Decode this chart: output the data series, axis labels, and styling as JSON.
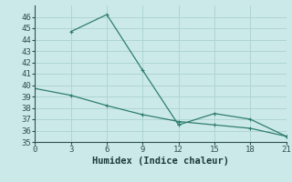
{
  "line1_x": [
    3,
    6,
    9,
    12,
    15,
    18,
    21
  ],
  "line1_y": [
    44.7,
    46.2,
    41.3,
    36.5,
    37.5,
    37.0,
    35.5
  ],
  "line2_x": [
    0,
    3,
    6,
    9,
    12,
    15,
    18,
    21
  ],
  "line2_y": [
    39.7,
    39.1,
    38.2,
    37.4,
    36.8,
    36.5,
    36.2,
    35.5
  ],
  "line_color": "#2e7d6e",
  "bg_color": "#cce9e9",
  "grid_color": "#afd4d4",
  "xlabel": "Humidex (Indice chaleur)",
  "xlim": [
    0,
    21
  ],
  "ylim": [
    35,
    47
  ],
  "xticks": [
    0,
    3,
    6,
    9,
    12,
    15,
    18,
    21
  ],
  "yticks": [
    35,
    36,
    37,
    38,
    39,
    40,
    41,
    42,
    43,
    44,
    45,
    46
  ],
  "tick_fontsize": 6.5,
  "label_fontsize": 7.5
}
